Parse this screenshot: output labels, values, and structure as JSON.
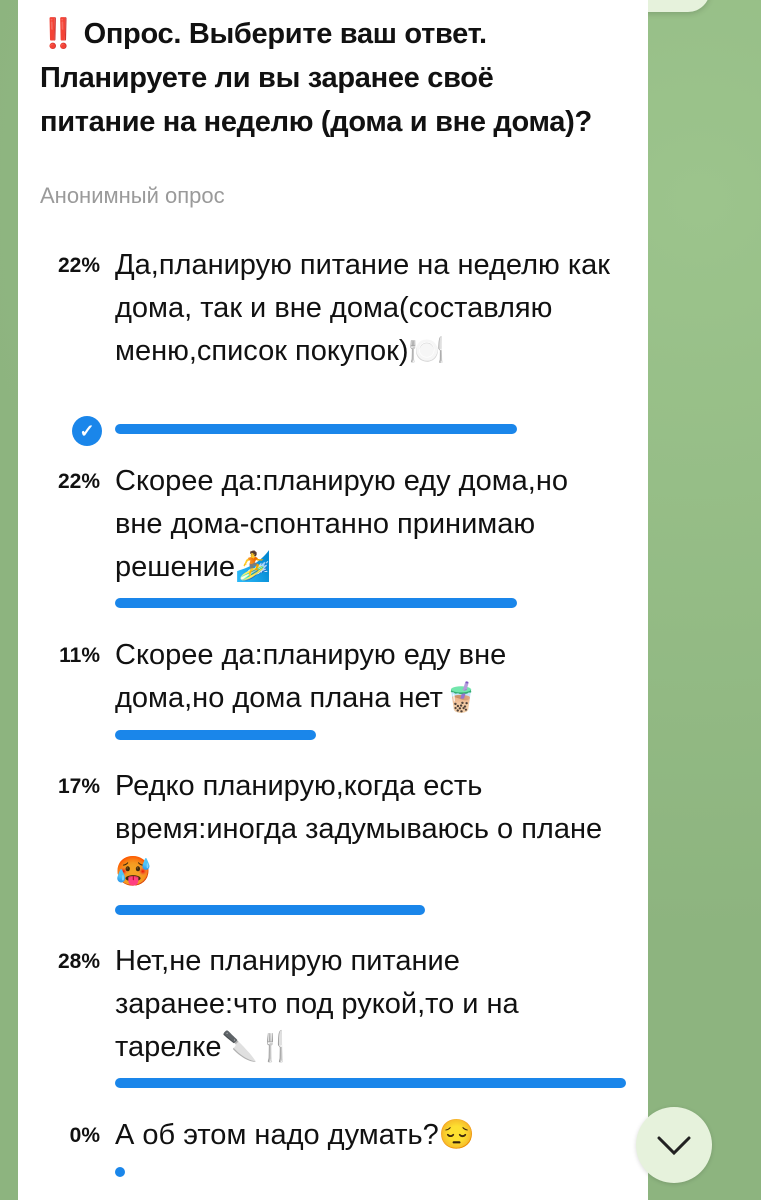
{
  "poll": {
    "question": "‼️ Опрос. Выберите ваш ответ. Планируете ли вы заранее своё питание на неделю (дома и вне дома)?",
    "type_label": "Анонимный опрос",
    "accent_color": "#1a86ea",
    "options": [
      {
        "percent": "22%",
        "value": 22,
        "text": "Да,планирую питание на неделю как дома, так и вне дома(составляю меню,список покупок)🍽️",
        "selected": true
      },
      {
        "percent": "22%",
        "value": 22,
        "text": "Скорее да:планирую еду дома,но вне дома-спонтанно принимаю решение🏄",
        "selected": false
      },
      {
        "percent": "11%",
        "value": 11,
        "text": "Скорее да:планирую еду вне дома,но дома плана нет🧋",
        "selected": false
      },
      {
        "percent": "17%",
        "value": 17,
        "text": "Редко планирую,когда есть время:иногда задумываюсь о плане🥵",
        "selected": false
      },
      {
        "percent": "28%",
        "value": 28,
        "text": "Нет,не планирую питание заранее:что под рукой,то и на тарелке🔪🍴",
        "selected": false
      },
      {
        "percent": "0%",
        "value": 0,
        "text": "А об этом надо думать?😔",
        "selected": false
      }
    ]
  },
  "scroll_down_icon": "chevron-down-icon",
  "selected_icon": "checkmark-icon"
}
